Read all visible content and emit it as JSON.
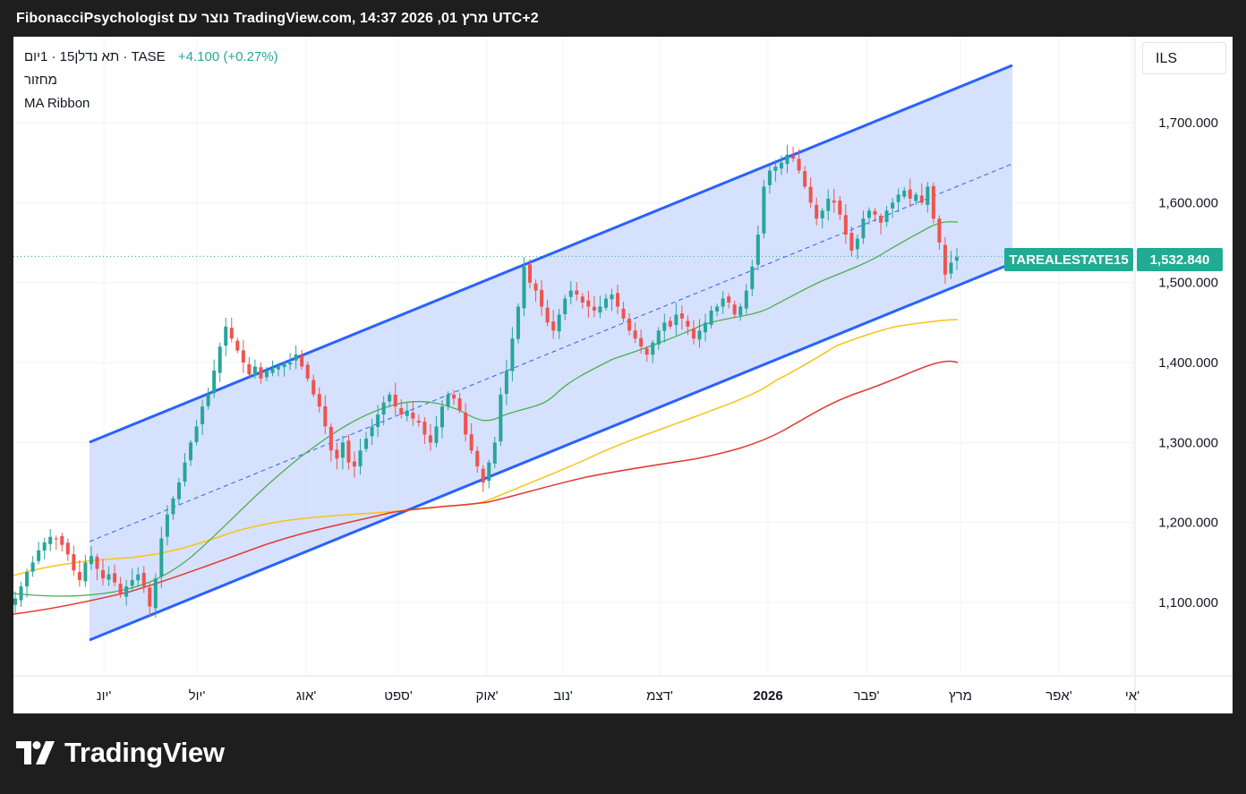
{
  "header": {
    "title": "FibonacciPsychologist נוצר עם TradingView.com, 14:37 2026 ,01 מרץ UTC+2"
  },
  "legend": {
    "symbol_line": "תא נדלן15 · 1יום · TASE",
    "change": "+4.100 (+0.27%)",
    "indicator_volume": "מחזור",
    "indicator_ma": "MA Ribbon"
  },
  "currency": "ILS",
  "price_label": {
    "ticker": "TAREALESTATE15",
    "price": "1,532.840"
  },
  "brand": {
    "name": "TradingView"
  },
  "colors": {
    "up": "#26a69a",
    "down": "#ef5350",
    "channel_line": "#2962ff",
    "channel_fill": "#cfdcfd",
    "ma_green": "#4caf50",
    "ma_yellow": "#f5c518",
    "ma_red": "#e53935",
    "label_bg": "#22ab94"
  },
  "chart_data": {
    "type": "candlestick",
    "y_axis": {
      "ticks": [
        "1,100.000",
        "1,200.000",
        "1,300.000",
        "1,400.000",
        "1,500.000",
        "1,600.000",
        "1,700.000"
      ],
      "tick_values": [
        1100,
        1200,
        1300,
        1400,
        1500,
        1600,
        1700
      ],
      "range": [
        1010,
        1790
      ]
    },
    "x_axis": {
      "ticks": [
        "יונ'",
        "יול'",
        "אוג'",
        "ספט'",
        "אוק'",
        "נוב'",
        "דצמ'",
        "2026",
        "פבר'",
        "מרץ",
        "אפר'",
        "אי'"
      ]
    },
    "last_price": 1532.84,
    "closes": [
      1105,
      1120,
      1138,
      1150,
      1165,
      1175,
      1182,
      1180,
      1172,
      1160,
      1140,
      1128,
      1150,
      1158,
      1142,
      1130,
      1135,
      1125,
      1110,
      1120,
      1128,
      1135,
      1120,
      1095,
      1130,
      1180,
      1210,
      1230,
      1250,
      1275,
      1300,
      1320,
      1345,
      1360,
      1390,
      1420,
      1445,
      1430,
      1415,
      1400,
      1385,
      1395,
      1380,
      1390,
      1392,
      1395,
      1398,
      1400,
      1410,
      1395,
      1380,
      1360,
      1345,
      1320,
      1290,
      1280,
      1300,
      1275,
      1270,
      1290,
      1305,
      1320,
      1335,
      1350,
      1360,
      1345,
      1335,
      1340,
      1330,
      1325,
      1310,
      1300,
      1320,
      1345,
      1360,
      1355,
      1340,
      1310,
      1290,
      1270,
      1250,
      1275,
      1300,
      1360,
      1390,
      1430,
      1470,
      1520,
      1500,
      1490,
      1470,
      1450,
      1440,
      1460,
      1480,
      1490,
      1485,
      1475,
      1470,
      1465,
      1470,
      1480,
      1485,
      1470,
      1455,
      1440,
      1430,
      1420,
      1410,
      1425,
      1440,
      1450,
      1445,
      1460,
      1455,
      1445,
      1430,
      1440,
      1450,
      1465,
      1470,
      1480,
      1475,
      1460,
      1470,
      1490,
      1520,
      1560,
      1620,
      1640,
      1645,
      1650,
      1660,
      1655,
      1640,
      1620,
      1600,
      1580,
      1590,
      1605,
      1600,
      1585,
      1560,
      1540,
      1555,
      1580,
      1590,
      1585,
      1575,
      1590,
      1600,
      1610,
      1615,
      1605,
      1610,
      1600,
      1620,
      1580,
      1550,
      1510,
      1525,
      1532
    ],
    "channel": {
      "upper_start": [
        1300,
        1171
      ],
      "upper_end": [
        1770,
        1653
      ],
      "lower_start": [
        1053,
        1171
      ],
      "lower_end": [
        1520,
        1653
      ],
      "mid_start": [
        1177,
        1171
      ],
      "mid_end": [
        1648,
        1653
      ]
    },
    "ma_ribbon": [
      {
        "color": "green",
        "points": [
          [
            1101,
            1107
          ],
          [
            1114,
            1129
          ],
          [
            1185,
            1177
          ],
          [
            1283,
            1281
          ],
          [
            1318,
            1356
          ],
          [
            1323,
            1390
          ],
          [
            1353,
            1437
          ],
          [
            1349,
            1481
          ],
          [
            1325,
            1514
          ],
          [
            1345,
            1541
          ],
          [
            1377,
            1576
          ],
          [
            1423,
            1607
          ],
          [
            1423,
            1662
          ],
          [
            1464,
            1737
          ],
          [
            1539,
            1824
          ],
          [
            1581,
            1858
          ],
          [
            1600,
            1972
          ],
          [
            1576,
            2062
          ]
        ]
      },
      {
        "color": "yellow",
        "points": [
          [
            1136,
            1000
          ],
          [
            1151,
            1094
          ],
          [
            1171,
            1161
          ],
          [
            1196,
            1219
          ],
          [
            1207,
            1316
          ],
          [
            1222,
            1470
          ],
          [
            1254,
            1558
          ],
          [
            1283,
            1662
          ],
          [
            1314,
            1737
          ],
          [
            1364,
            1848
          ],
          [
            1419,
            1962
          ],
          [
            1453,
            2062
          ]
        ]
      },
      {
        "color": "red",
        "points": [
          [
            1088,
            1000
          ],
          [
            1114,
            1104
          ],
          [
            1170,
            1217
          ],
          [
            1207,
            1317
          ],
          [
            1222,
            1467
          ],
          [
            1245,
            1560
          ],
          [
            1280,
            1662
          ],
          [
            1296,
            1767
          ],
          [
            1353,
            1858
          ],
          [
            1398,
            1968
          ],
          [
            1442,
            2062
          ]
        ]
      }
    ]
  }
}
